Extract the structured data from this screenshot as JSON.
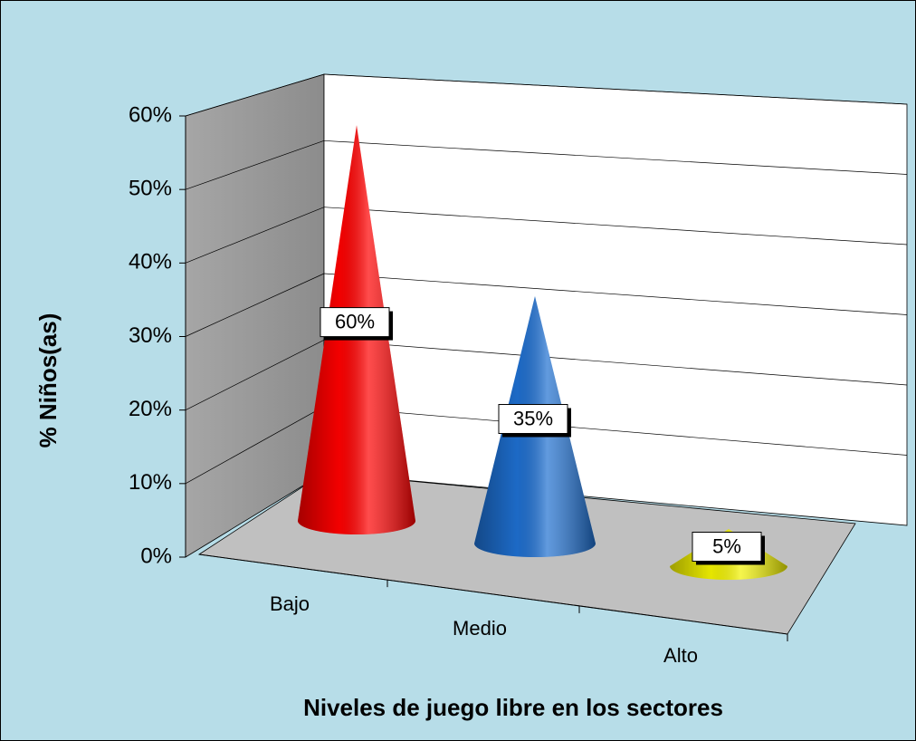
{
  "chart_data": {
    "type": "cone3d",
    "xlabel": "Niveles de juego libre en los sectores",
    "ylabel": "% Niños(as)",
    "categories": [
      "Bajo",
      "Medio",
      "Alto"
    ],
    "values": [
      60,
      35,
      5
    ],
    "value_labels": [
      "60%",
      "35%",
      "5%"
    ],
    "colors": [
      "#ff0000",
      "#1e6fd0",
      "#f2f200"
    ],
    "ylim": [
      0,
      60
    ],
    "yticks": [
      {
        "value": 0,
        "label": "0%"
      },
      {
        "value": 10,
        "label": "10%"
      },
      {
        "value": 20,
        "label": "20%"
      },
      {
        "value": 30,
        "label": "30%"
      },
      {
        "value": 40,
        "label": "40%"
      },
      {
        "value": 50,
        "label": "50%"
      },
      {
        "value": 60,
        "label": "60%"
      }
    ],
    "grid": true
  }
}
